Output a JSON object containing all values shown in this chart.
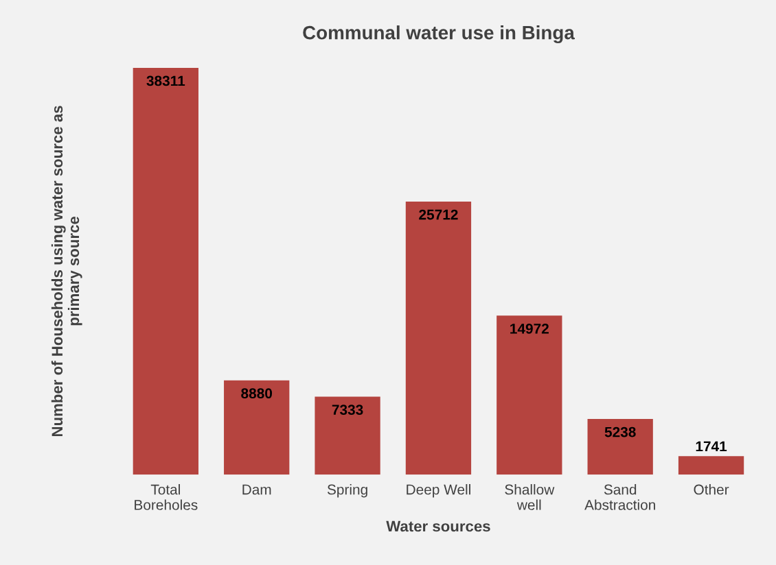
{
  "chart_data": {
    "type": "bar",
    "title": "Communal water use in Binga",
    "xlabel": "Water sources",
    "ylabel": "Number of Households using water source as\nprimary source",
    "categories": [
      "Total\nBoreholes",
      "Dam",
      "Spring",
      "Deep Well",
      "Shallow\nwell",
      "Sand\nAbstraction",
      "Other"
    ],
    "values": [
      38311,
      8880,
      7333,
      25712,
      14972,
      5238,
      1741
    ],
    "color": "#b5443f",
    "data_labels": true,
    "tick_labels": "x",
    "grid": false
  }
}
